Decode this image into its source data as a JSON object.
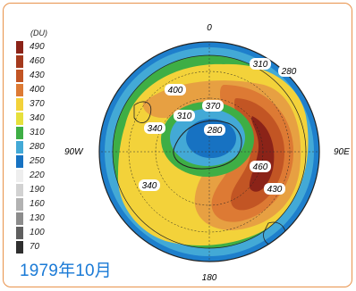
{
  "legend": {
    "unit": "(DU)",
    "levels": [
      {
        "label": "490",
        "color": "#8b2318"
      },
      {
        "label": "460",
        "color": "#a4391d"
      },
      {
        "label": "430",
        "color": "#c25524"
      },
      {
        "label": "400",
        "color": "#dd7a34"
      },
      {
        "label": "370",
        "color": "#f3d23a"
      },
      {
        "label": "340",
        "color": "#e6e03c"
      },
      {
        "label": "310",
        "color": "#3eae45"
      },
      {
        "label": "280",
        "color": "#43a9d6"
      },
      {
        "label": "250",
        "color": "#1772c2"
      },
      {
        "label": "220",
        "color": "#eeeeee"
      },
      {
        "label": "190",
        "color": "#d2d2d2"
      },
      {
        "label": "160",
        "color": "#b2b2b2"
      },
      {
        "label": "130",
        "color": "#8c8c8c"
      },
      {
        "label": "100",
        "color": "#5f5f5f"
      },
      {
        "label": "70",
        "color": "#2f2f2f"
      }
    ]
  },
  "map": {
    "axis_labels": {
      "top": "0",
      "bottom": "180",
      "left": "90W",
      "right": "90E"
    },
    "contour_labels": [
      "310",
      "280",
      "400",
      "370",
      "310",
      "340",
      "280",
      "460",
      "430",
      "340"
    ]
  },
  "caption": "1979年10月"
}
